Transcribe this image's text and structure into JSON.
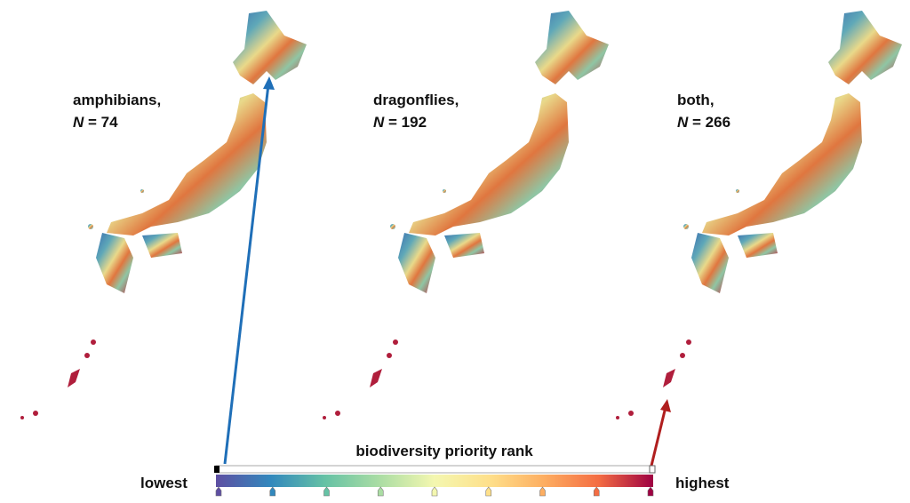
{
  "panels": [
    {
      "name": "amphibians,",
      "n_symbol": "N",
      "n_text": "= 74"
    },
    {
      "name": "dragonflies,",
      "n_symbol": "N",
      "n_text": "= 192"
    },
    {
      "name": "both,",
      "n_symbol": "N",
      "n_text": "= 266"
    }
  ],
  "legend": {
    "title": "biodiversity priority rank",
    "low_label": "lowest",
    "high_label": "highest",
    "colors": [
      "#5e4fa2",
      "#3288bd",
      "#66c2a5",
      "#abdda4",
      "#f4f7b0",
      "#fee08b",
      "#fdae61",
      "#f46d43",
      "#9e0142"
    ]
  }
}
